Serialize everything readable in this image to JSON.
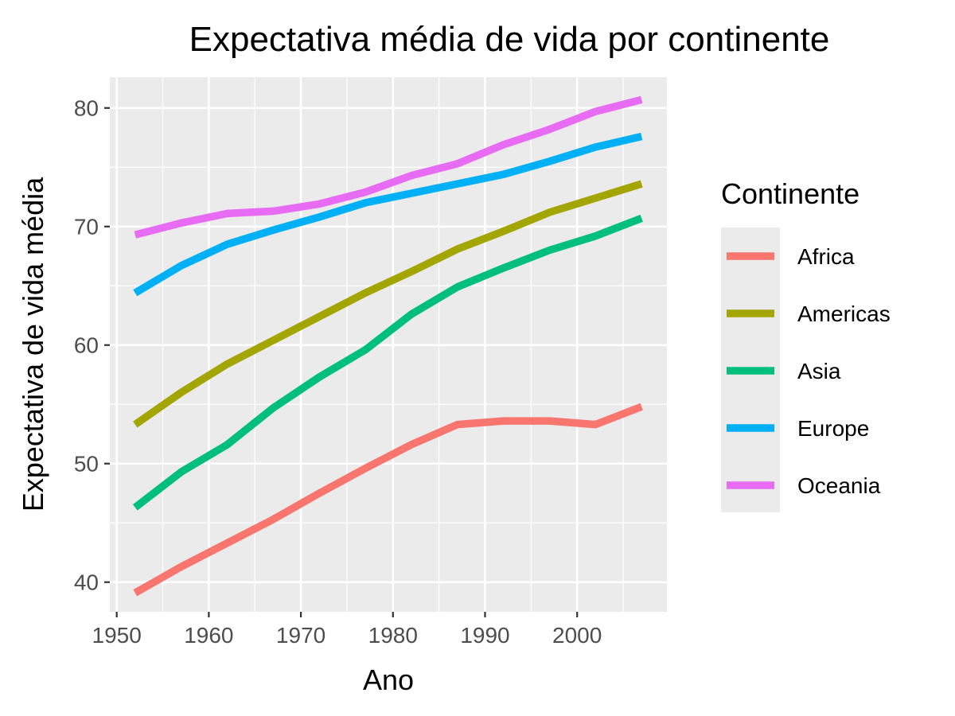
{
  "chart_data": {
    "type": "line",
    "title": "Expectativa média de vida por continente",
    "xlabel": "Ano",
    "ylabel": "Expectativa de vida média",
    "x": [
      1952,
      1957,
      1962,
      1967,
      1972,
      1977,
      1982,
      1987,
      1992,
      1997,
      2002,
      2007
    ],
    "xticks": [
      1950,
      1960,
      1970,
      1980,
      1990,
      2000
    ],
    "yticks": [
      40,
      50,
      60,
      70,
      80
    ],
    "xlim": [
      1949.25,
      2009.75
    ],
    "ylim": [
      37.5,
      82.6
    ],
    "grid": true,
    "legend": {
      "title": "Continente",
      "position": "right"
    },
    "series": [
      {
        "name": "Africa",
        "color": "#F8766D",
        "values": [
          39.1,
          41.3,
          43.3,
          45.3,
          47.5,
          49.6,
          51.6,
          53.3,
          53.6,
          53.6,
          53.3,
          54.8
        ]
      },
      {
        "name": "Americas",
        "color": "#A3A500",
        "values": [
          53.3,
          56.0,
          58.4,
          60.4,
          62.4,
          64.4,
          66.2,
          68.1,
          69.6,
          71.2,
          72.4,
          73.6
        ]
      },
      {
        "name": "Asia",
        "color": "#00BF7D",
        "values": [
          46.3,
          49.3,
          51.6,
          54.7,
          57.3,
          59.6,
          62.6,
          64.9,
          66.5,
          68.0,
          69.2,
          70.7
        ]
      },
      {
        "name": "Europe",
        "color": "#00B0F6",
        "values": [
          64.4,
          66.7,
          68.5,
          69.7,
          70.8,
          72.0,
          72.8,
          73.6,
          74.4,
          75.5,
          76.7,
          77.6
        ]
      },
      {
        "name": "Oceania",
        "color": "#E76BF3",
        "values": [
          69.3,
          70.3,
          71.1,
          71.3,
          71.9,
          72.9,
          74.3,
          75.3,
          76.9,
          78.2,
          79.7,
          80.7
        ]
      }
    ]
  }
}
